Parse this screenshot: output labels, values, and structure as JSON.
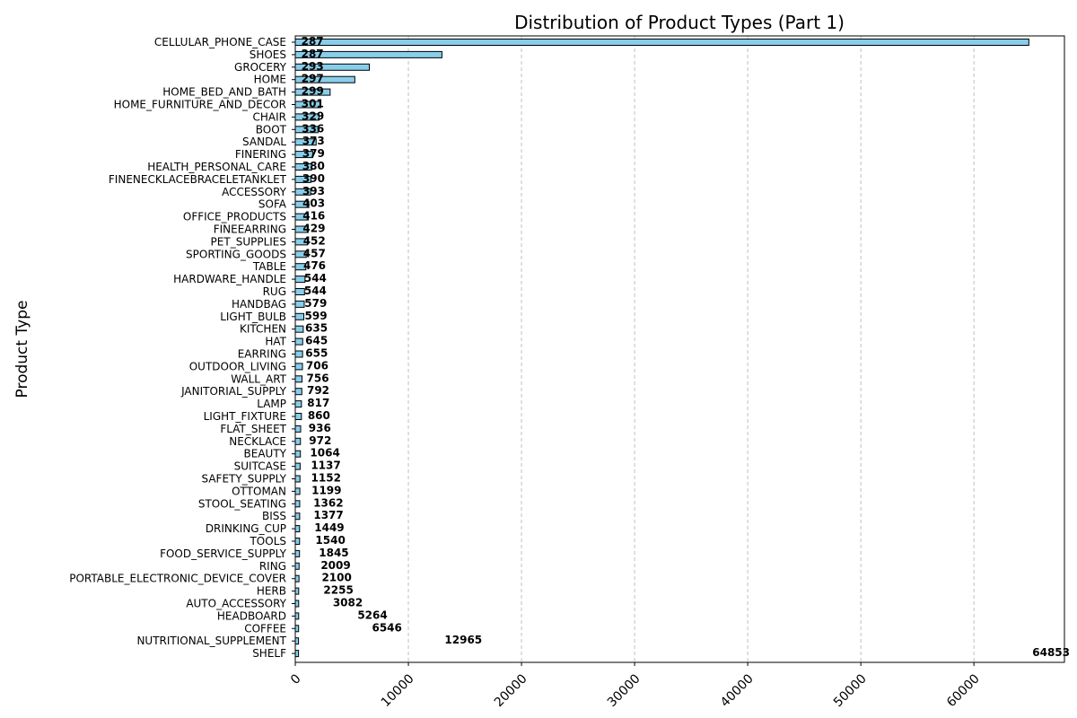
{
  "chart_data": {
    "type": "bar",
    "orientation": "horizontal",
    "title": "Distribution of Product Types (Part 1)",
    "xlabel": "",
    "ylabel": "Product Type",
    "xlim": [
      0,
      68000
    ],
    "xticks": [
      0,
      10000,
      20000,
      30000,
      40000,
      50000,
      60000
    ],
    "grid": "x-dashed",
    "bar_color": "#87ceeb",
    "bar_edge_color": "#000000",
    "categories": [
      "CELLULAR_PHONE_CASE",
      "SHOES",
      "GROCERY",
      "HOME",
      "HOME_BED_AND_BATH",
      "HOME_FURNITURE_AND_DECOR",
      "CHAIR",
      "BOOT",
      "SANDAL",
      "FINERING",
      "HEALTH_PERSONAL_CARE",
      "FINENECKLACEBRACELETANKLET",
      "ACCESSORY",
      "SOFA",
      "OFFICE_PRODUCTS",
      "FINEEARRING",
      "PET_SUPPLIES",
      "SPORTING_GOODS",
      "TABLE",
      "HARDWARE_HANDLE",
      "RUG",
      "HANDBAG",
      "LIGHT_BULB",
      "KITCHEN",
      "HAT",
      "EARRING",
      "OUTDOOR_LIVING",
      "WALL_ART",
      "JANITORIAL_SUPPLY",
      "LAMP",
      "LIGHT_FIXTURE",
      "FLAT_SHEET",
      "NECKLACE",
      "BEAUTY",
      "SUITCASE",
      "SAFETY_SUPPLY",
      "OTTOMAN",
      "STOOL_SEATING",
      "BISS",
      "DRINKING_CUP",
      "TOOLS",
      "FOOD_SERVICE_SUPPLY",
      "RING",
      "PORTABLE_ELECTRONIC_DEVICE_COVER",
      "HERB",
      "AUTO_ACCESSORY",
      "HEADBOARD",
      "COFFEE",
      "NUTRITIONAL_SUPPLEMENT",
      "SHELF"
    ],
    "values": [
      64853,
      12965,
      6546,
      5264,
      3082,
      2255,
      2100,
      2009,
      1845,
      1540,
      1449,
      1377,
      1362,
      1199,
      1152,
      1137,
      1064,
      972,
      936,
      860,
      817,
      792,
      756,
      706,
      655,
      645,
      635,
      599,
      579,
      544,
      544,
      476,
      457,
      452,
      429,
      416,
      403,
      393,
      390,
      380,
      379,
      373,
      336,
      329,
      301,
      299,
      297,
      293,
      287,
      287
    ],
    "data_labels": [
      287,
      287,
      293,
      297,
      299,
      301,
      329,
      336,
      373,
      379,
      380,
      390,
      393,
      403,
      416,
      429,
      452,
      457,
      476,
      544,
      544,
      579,
      599,
      635,
      645,
      655,
      706,
      756,
      792,
      817,
      860,
      936,
      972,
      1064,
      1137,
      1152,
      1199,
      1362,
      1377,
      1449,
      1540,
      1845,
      2009,
      2100,
      2255,
      3082,
      5264,
      6546,
      12965,
      64853
    ]
  }
}
